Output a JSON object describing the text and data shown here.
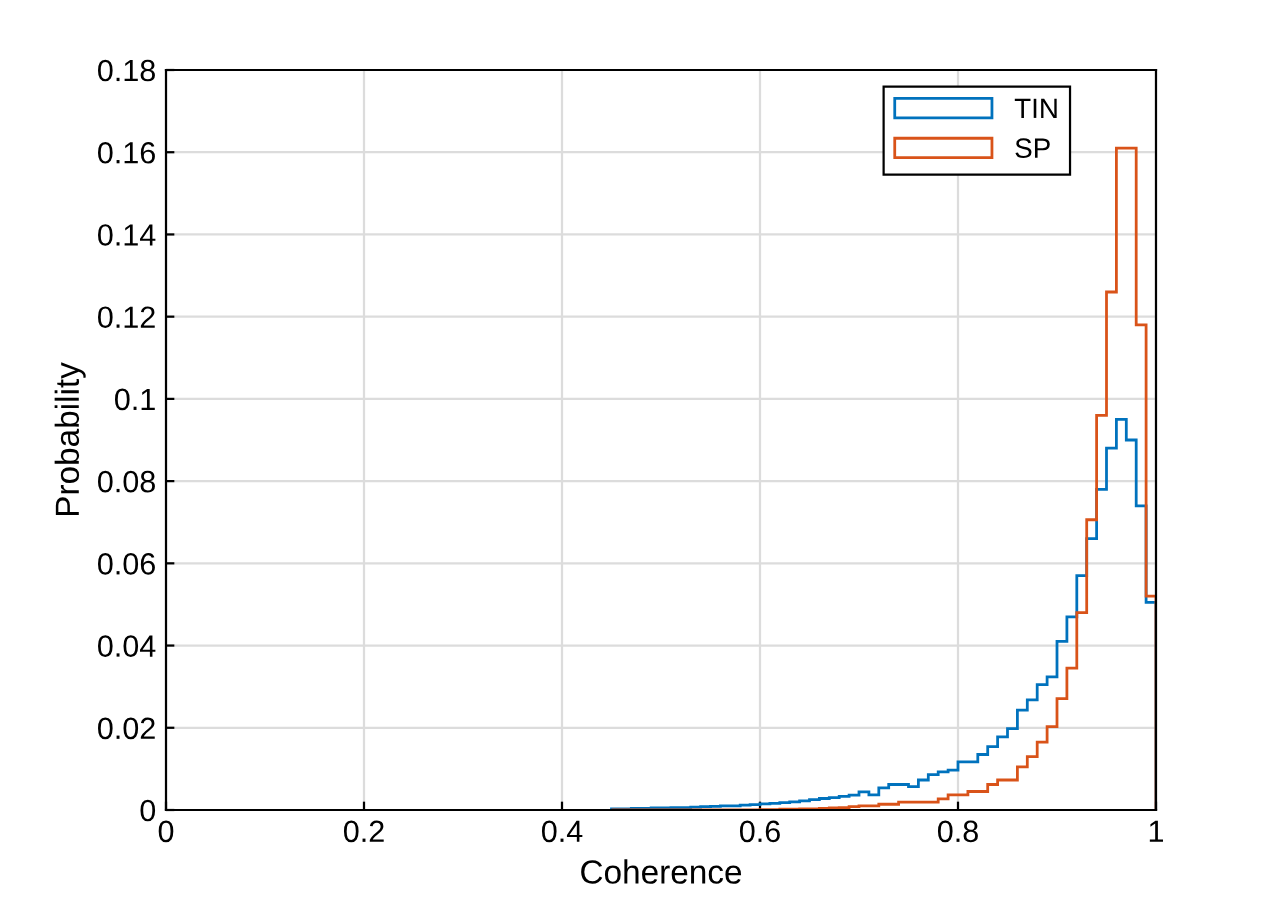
{
  "chart_data": {
    "type": "histogram",
    "xlabel": "Coherence",
    "ylabel": "Probability",
    "bins": [
      0.45,
      0.46,
      0.47,
      0.48,
      0.49,
      0.5,
      0.51,
      0.52,
      0.53,
      0.54,
      0.55,
      0.56,
      0.57,
      0.58,
      0.59,
      0.6,
      0.61,
      0.62,
      0.63,
      0.64,
      0.65,
      0.66,
      0.67,
      0.68,
      0.69,
      0.7,
      0.71,
      0.72,
      0.73,
      0.74,
      0.75,
      0.76,
      0.77,
      0.78,
      0.79,
      0.8,
      0.81,
      0.82,
      0.83,
      0.84,
      0.85,
      0.86,
      0.87,
      0.88,
      0.89,
      0.9,
      0.91,
      0.92,
      0.93,
      0.94,
      0.95,
      0.96,
      0.97,
      0.98,
      0.99,
      1.0
    ],
    "series": [
      {
        "name": "TIN",
        "color": "#0072bd",
        "values": [
          0.0003,
          0.0003,
          0.0004,
          0.0004,
          0.0005,
          0.0005,
          0.0006,
          0.0006,
          0.0007,
          0.0008,
          0.0009,
          0.001,
          0.001,
          0.0012,
          0.0013,
          0.0015,
          0.0016,
          0.0018,
          0.002,
          0.0022,
          0.0025,
          0.0028,
          0.003,
          0.0033,
          0.0036,
          0.0044,
          0.0037,
          0.0054,
          0.0062,
          0.0062,
          0.0057,
          0.0073,
          0.0086,
          0.0093,
          0.0097,
          0.0117,
          0.0117,
          0.0135,
          0.0154,
          0.0178,
          0.0198,
          0.0243,
          0.0268,
          0.0305,
          0.0324,
          0.041,
          0.047,
          0.057,
          0.066,
          0.078,
          0.088,
          0.095,
          0.09,
          0.074,
          0.0505
        ]
      },
      {
        "name": "SP",
        "color": "#d95319",
        "values": [
          0,
          0,
          0,
          0,
          0,
          0,
          0,
          0,
          0,
          0,
          0,
          0,
          0,
          0,
          0,
          0.0001,
          0.0001,
          0.0002,
          0.0002,
          0.0003,
          0.0003,
          0.0004,
          0.0005,
          0.0006,
          0.0008,
          0.001,
          0.001,
          0.0014,
          0.0014,
          0.0019,
          0.0019,
          0.0019,
          0.0019,
          0.0027,
          0.0037,
          0.0037,
          0.0045,
          0.0045,
          0.0062,
          0.0073,
          0.0073,
          0.0105,
          0.013,
          0.0165,
          0.0203,
          0.0271,
          0.0345,
          0.048,
          0.0706,
          0.096,
          0.126,
          0.161,
          0.161,
          0.118,
          0.052
        ]
      }
    ],
    "xlim": [
      0,
      1
    ],
    "xticks": [
      0,
      0.2,
      0.4,
      0.6,
      0.8,
      1
    ],
    "ylim": [
      0,
      0.18
    ],
    "yticks": [
      0,
      0.02,
      0.04,
      0.06,
      0.08,
      0.1,
      0.12,
      0.14,
      0.16,
      0.18
    ],
    "grid": true,
    "legend": "top right"
  }
}
